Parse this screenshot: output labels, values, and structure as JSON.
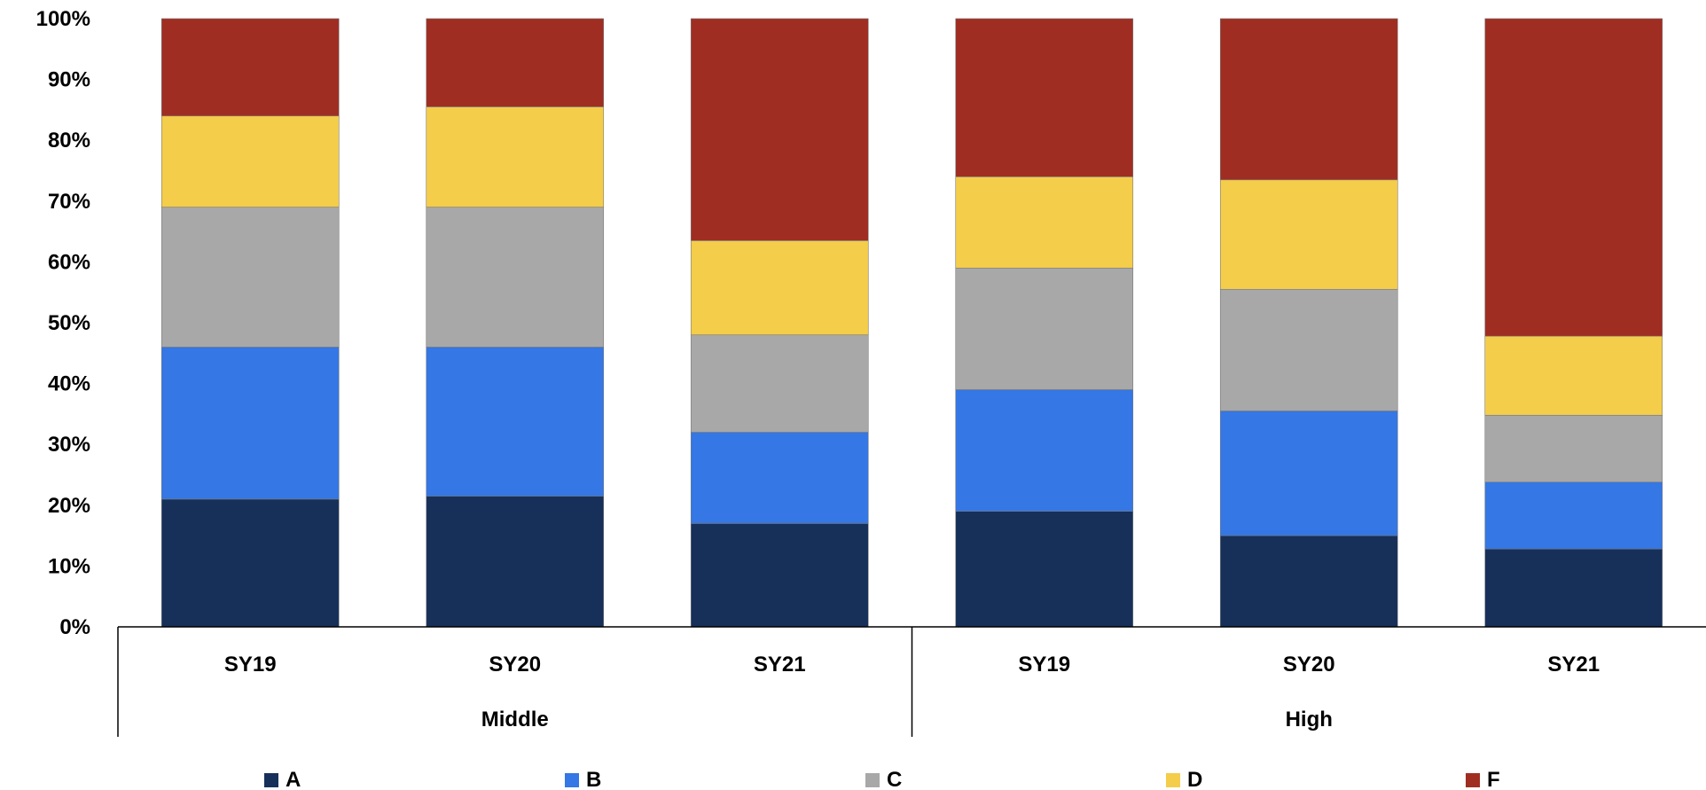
{
  "chart_data": {
    "type": "bar",
    "stacked": true,
    "groups": [
      {
        "label": "Middle",
        "categories": [
          "SY19",
          "SY20",
          "SY21"
        ]
      },
      {
        "label": "High",
        "categories": [
          "SY19",
          "SY20",
          "SY21"
        ]
      }
    ],
    "series": [
      {
        "name": "A",
        "color": "#16305A",
        "values": [
          21,
          21.5,
          17,
          19,
          15,
          12.8
        ]
      },
      {
        "name": "B",
        "color": "#3477E5",
        "values": [
          25,
          24.5,
          15,
          20,
          20.5,
          11
        ]
      },
      {
        "name": "C",
        "color": "#A8A8A8",
        "values": [
          23,
          23,
          16,
          20,
          20,
          11
        ]
      },
      {
        "name": "D",
        "color": "#F4CD4A",
        "values": [
          15,
          16.5,
          15.5,
          15,
          18,
          13
        ]
      },
      {
        "name": "F",
        "color": "#A02D22",
        "values": [
          16,
          14.5,
          36.5,
          26,
          26.5,
          52.2
        ]
      }
    ],
    "y_ticks": [
      "0%",
      "10%",
      "20%",
      "30%",
      "40%",
      "50%",
      "60%",
      "70%",
      "80%",
      "90%",
      "100%"
    ],
    "ylim": [
      0,
      100
    ],
    "grid": false,
    "legend_position": "bottom"
  }
}
